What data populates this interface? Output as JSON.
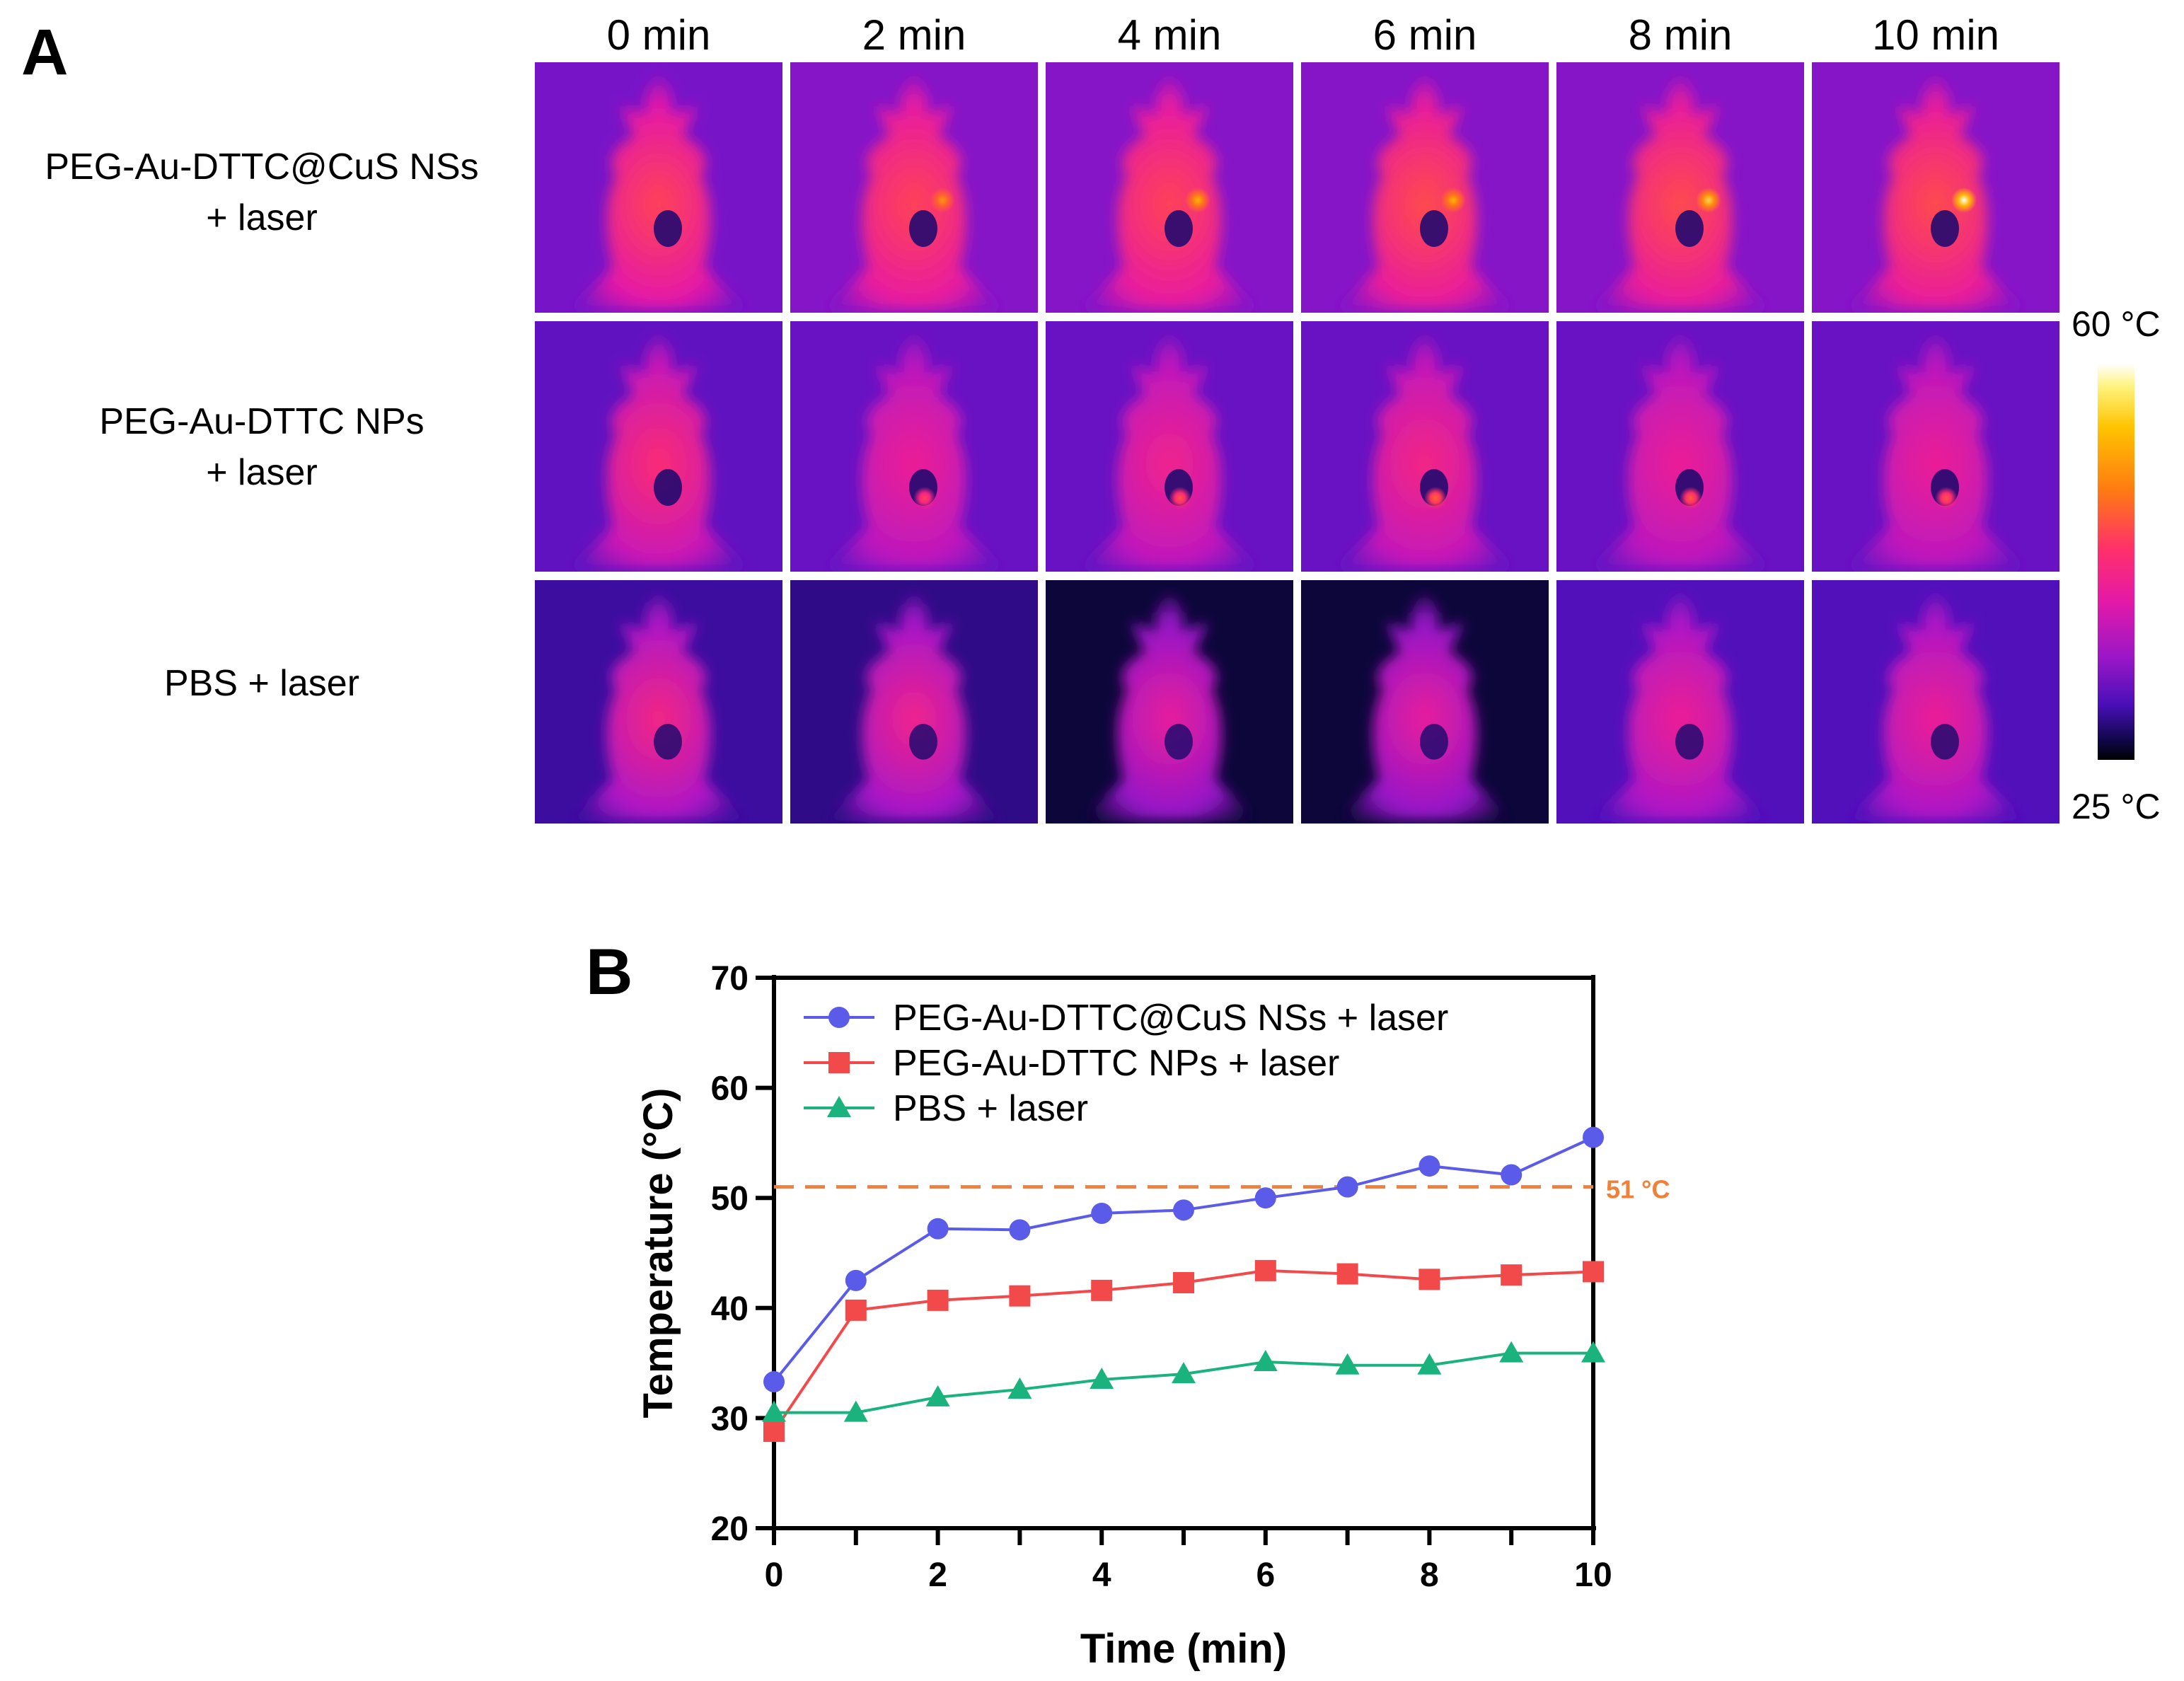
{
  "panel_a": {
    "letter": "A",
    "time_labels": [
      "0 min",
      "2 min",
      "4 min",
      "6 min",
      "8 min",
      "10 min"
    ],
    "rows": [
      {
        "line1": "PEG-Au-DTTC@CuS NSs",
        "line2": "+ laser"
      },
      {
        "line1": "PEG-Au-DTTC NPs",
        "line2": "+ laser"
      },
      {
        "line1": "PBS + laser",
        "line2": ""
      }
    ],
    "colorbar": {
      "max_label": "60 °C",
      "min_label": "25 °C",
      "colormap": "thermal"
    }
  },
  "panel_b": {
    "letter": "B"
  },
  "chart_data": {
    "type": "line",
    "xlabel": "Time (min)",
    "ylabel": "Temperature (°C)",
    "xlim": [
      0,
      10
    ],
    "ylim": [
      20,
      70
    ],
    "xticks": [
      "0",
      "2",
      "4",
      "6",
      "8",
      "10"
    ],
    "yticks": [
      "20",
      "30",
      "40",
      "50",
      "60",
      "70"
    ],
    "grid": false,
    "legend_position": "top-left",
    "x": [
      0,
      1,
      2,
      3,
      4,
      5,
      6,
      7,
      8,
      9,
      10
    ],
    "series": [
      {
        "name": "PEG-Au-DTTC@CuS NSs + laser",
        "color": "#5b5bea",
        "marker": "circle",
        "values": [
          33.3,
          42.5,
          47.2,
          47.1,
          48.6,
          48.9,
          50.0,
          51.0,
          52.9,
          52.1,
          55.5
        ]
      },
      {
        "name": "PEG-Au-DTTC NPs + laser",
        "color": "#f24a4a",
        "marker": "square",
        "values": [
          28.8,
          39.8,
          40.7,
          41.1,
          41.6,
          42.3,
          43.4,
          43.1,
          42.6,
          43.0,
          43.3
        ]
      },
      {
        "name": "PBS + laser",
        "color": "#1ab37d",
        "marker": "triangle",
        "values": [
          30.5,
          30.5,
          31.9,
          32.6,
          33.5,
          34.0,
          35.1,
          34.8,
          34.8,
          35.9,
          35.9
        ]
      }
    ],
    "reference_line": {
      "y": 51,
      "label": "51 °C",
      "color": "#f0813a",
      "style": "dashed"
    }
  },
  "thermal_maps": {
    "background_levels": [
      [
        0.26,
        0.3,
        0.3,
        0.3,
        0.3,
        0.3
      ],
      [
        0.2,
        0.22,
        0.22,
        0.22,
        0.22,
        0.22
      ],
      [
        0.12,
        0.1,
        0.04,
        0.04,
        0.16,
        0.16
      ]
    ],
    "body_levels": [
      [
        0.72,
        0.72,
        0.72,
        0.74,
        0.74,
        0.74
      ],
      [
        0.66,
        0.58,
        0.6,
        0.62,
        0.58,
        0.58
      ],
      [
        0.62,
        0.6,
        0.56,
        0.56,
        0.58,
        0.58
      ]
    ],
    "hotspot_levels": [
      [
        0.0,
        0.78,
        0.82,
        0.82,
        0.86,
        0.92
      ],
      [
        0.0,
        0.62,
        0.66,
        0.7,
        0.68,
        0.66
      ],
      [
        0.0,
        0.0,
        0.0,
        0.0,
        0.0,
        0.0
      ]
    ]
  }
}
